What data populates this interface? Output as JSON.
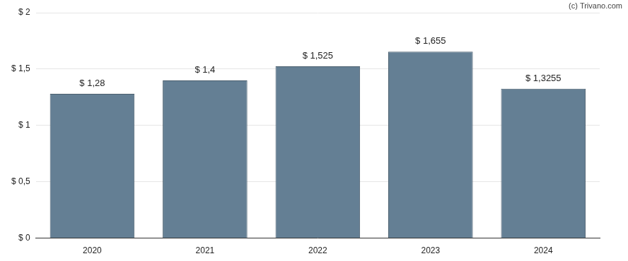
{
  "chart_data": {
    "type": "bar",
    "annotation": "(c) Trivano.com",
    "categories": [
      "2020",
      "2021",
      "2022",
      "2023",
      "2024"
    ],
    "values": [
      1.28,
      1.4,
      1.525,
      1.655,
      1.3255
    ],
    "value_labels": [
      "$ 1,28",
      "$ 1,4",
      "$ 1,525",
      "$ 1,655",
      "$ 1,3255"
    ],
    "color": "#647f94",
    "ylim": [
      0,
      2
    ],
    "yticks": [
      {
        "value": 0,
        "label": "$ 0"
      },
      {
        "value": 0.5,
        "label": "$ 0,5"
      },
      {
        "value": 1,
        "label": "$ 1"
      },
      {
        "value": 1.5,
        "label": "$ 1,5"
      },
      {
        "value": 2,
        "label": "$ 2"
      }
    ],
    "grid": true,
    "data_labels": true
  }
}
